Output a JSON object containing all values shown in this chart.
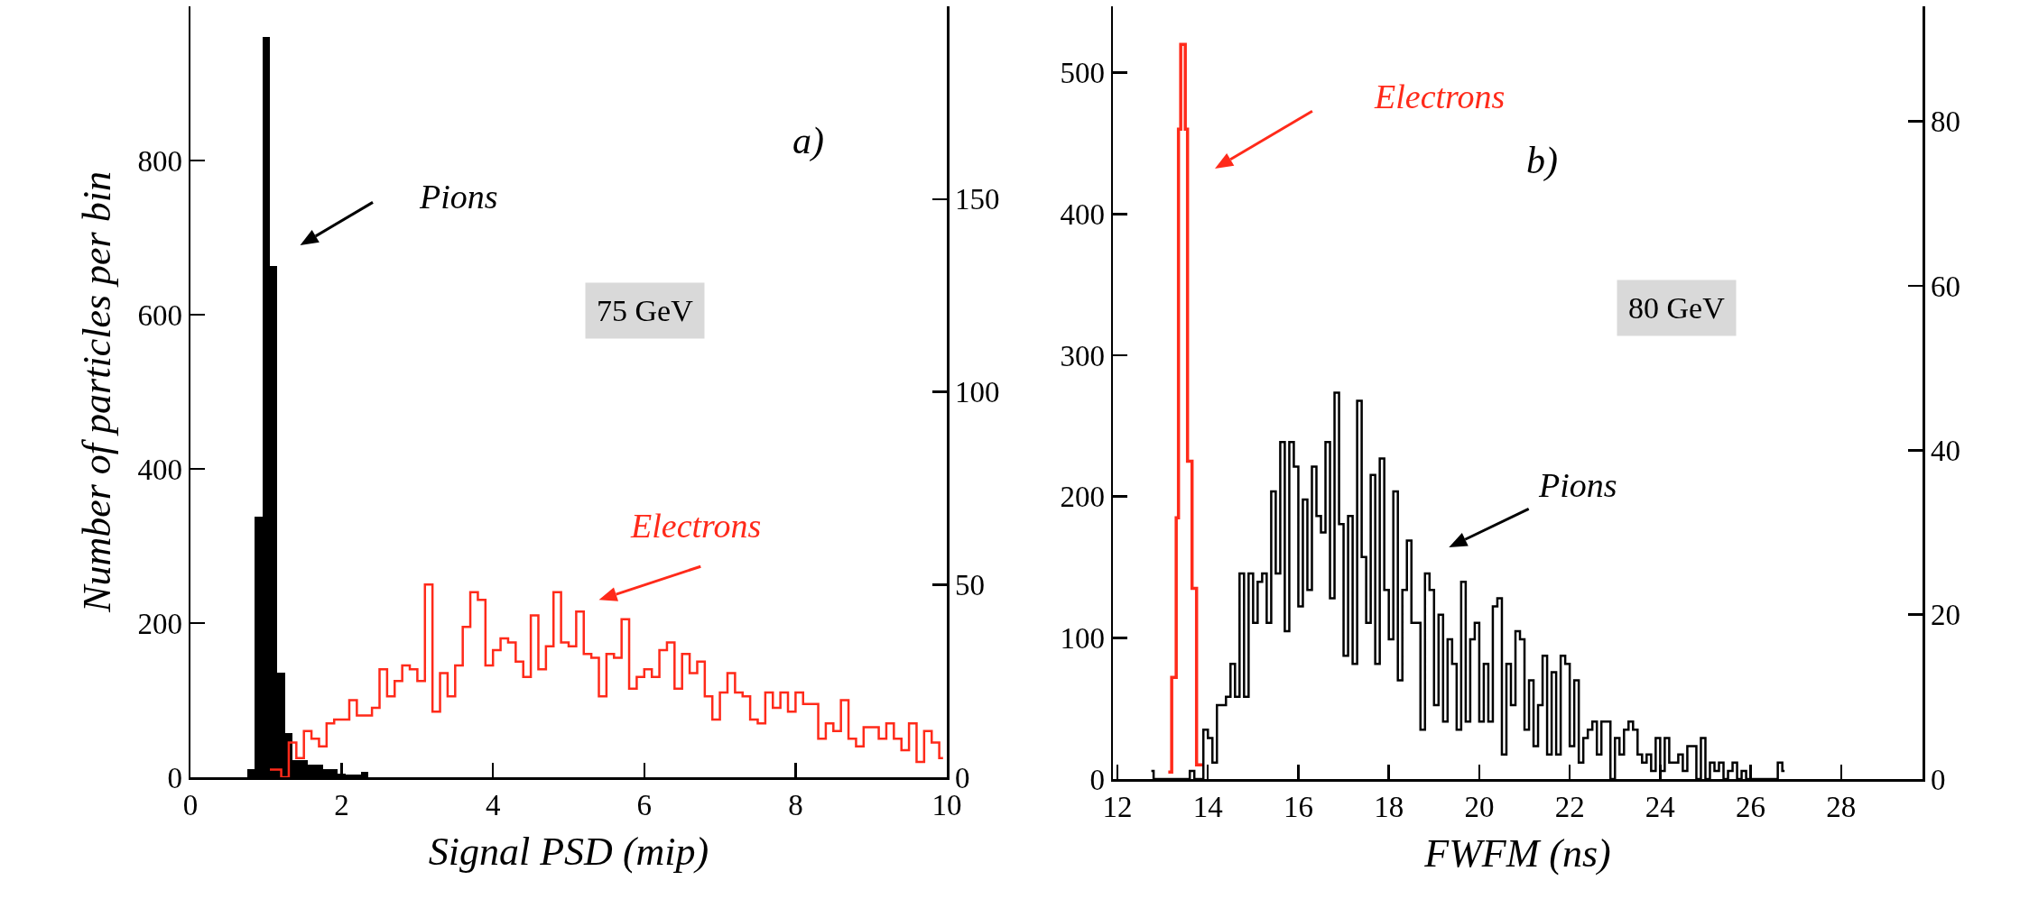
{
  "chart_data": [
    {
      "type": "bar",
      "xlabel": "Signal PSD (mip)",
      "ylabel": "Number of particles per bin",
      "annotations": [
        "a)",
        "75 GeV"
      ],
      "xlim": [
        0,
        10
      ],
      "xticks": [
        0,
        2,
        4,
        6,
        8,
        10
      ],
      "ylim": [
        0,
        1000
      ],
      "yticks": [
        0,
        200,
        400,
        600,
        800
      ],
      "y2lim": [
        0,
        200
      ],
      "y2ticks": [
        0,
        50,
        100,
        150
      ],
      "series": [
        {
          "name": "Pions",
          "color": "#000000",
          "x": [
            0.8,
            0.9,
            1.0,
            1.1,
            1.2,
            1.3,
            1.4,
            1.5,
            1.6,
            1.7,
            1.8,
            1.9,
            2.0,
            2.1,
            2.2,
            2.3
          ],
          "values": [
            10,
            338,
            960,
            663,
            136,
            57,
            22,
            22,
            16,
            16,
            10,
            10,
            5,
            3,
            3,
            7
          ]
        },
        {
          "name": "Electrons",
          "type": "step",
          "color": "#ff2a1a",
          "axis": "y2",
          "x": [
            1.05,
            1.15,
            1.25,
            1.35,
            1.45,
            1.55,
            1.65,
            1.75,
            1.85,
            1.95,
            2.05,
            2.15,
            2.25,
            2.35,
            2.45,
            2.55,
            2.65,
            2.75,
            2.85,
            2.95,
            3.05,
            3.15,
            3.25,
            3.35,
            3.45,
            3.55,
            3.65,
            3.75,
            3.85,
            3.95,
            4.05,
            4.15,
            4.25,
            4.35,
            4.45,
            4.55,
            4.65,
            4.75,
            4.85,
            4.95,
            5.05,
            5.15,
            5.25,
            5.35,
            5.45,
            5.55,
            5.65,
            5.75,
            5.85,
            5.95,
            6.05,
            6.15,
            6.25,
            6.35,
            6.45,
            6.55,
            6.65,
            6.75,
            6.85,
            6.95,
            7.05,
            7.15,
            7.25,
            7.35,
            7.45,
            7.55,
            7.65,
            7.75,
            7.85,
            7.95,
            8.05,
            8.15,
            8.25,
            8.35,
            8.45,
            8.55,
            8.65,
            8.75,
            8.85,
            8.95,
            9.05,
            9.15,
            9.25,
            9.35,
            9.45,
            9.55,
            9.65,
            9.75,
            9.85,
            9.95
          ],
          "values": [
            2,
            2,
            0,
            9,
            5,
            12,
            10,
            8,
            14,
            15,
            15,
            20,
            16,
            16,
            18,
            28,
            21,
            25,
            29,
            28,
            25,
            50,
            17,
            27,
            21,
            29,
            39,
            48,
            46,
            29,
            33,
            36,
            35,
            30,
            26,
            42,
            28,
            34,
            48,
            35,
            34,
            43,
            32,
            31,
            21,
            32,
            31,
            41,
            23,
            26,
            28,
            26,
            33,
            35,
            23,
            32,
            27,
            30,
            21,
            15,
            22,
            27,
            22,
            21,
            15,
            14,
            22,
            18,
            22,
            17,
            22,
            19,
            19,
            10,
            14,
            12,
            20,
            10,
            8,
            13,
            13,
            10,
            14,
            10,
            7,
            14,
            4,
            12,
            9,
            5
          ]
        }
      ]
    },
    {
      "type": "step",
      "xlabel": "FWFM (ns)",
      "annotations": [
        "b)",
        "80 GeV"
      ],
      "xlim": [
        11.9,
        29.8
      ],
      "xticks": [
        12,
        14,
        16,
        18,
        20,
        22,
        24,
        26,
        28
      ],
      "ylim": [
        0,
        547
      ],
      "yticks": [
        0,
        100,
        200,
        300,
        400,
        500
      ],
      "y2lim": [
        0,
        94
      ],
      "y2ticks": [
        0,
        20,
        40,
        60,
        80
      ],
      "series": [
        {
          "name": "Electrons",
          "color": "#ff2a1a",
          "x": [
            13.125,
            13.175,
            13.225,
            13.275,
            13.325,
            13.375,
            13.425,
            13.475,
            13.525,
            13.575,
            13.625,
            13.675,
            13.725,
            13.775,
            13.825,
            13.875
          ],
          "values": [
            5,
            5,
            72,
            72,
            185,
            460,
            520,
            520,
            460,
            225,
            225,
            135,
            135,
            10,
            10,
            10
          ]
        },
        {
          "name": "Pions",
          "color": "#000000",
          "axis": "y2",
          "x": [
            12.75,
            12.85,
            12.95,
            13.05,
            13.15,
            13.25,
            13.35,
            13.45,
            13.55,
            13.65,
            13.75,
            13.85,
            13.95,
            14.05,
            14.15,
            14.25,
            14.35,
            14.45,
            14.55,
            14.65,
            14.75,
            14.85,
            14.95,
            15.05,
            15.15,
            15.25,
            15.35,
            15.45,
            15.55,
            15.65,
            15.75,
            15.85,
            15.95,
            16.05,
            16.15,
            16.25,
            16.35,
            16.45,
            16.55,
            16.65,
            16.75,
            16.85,
            16.95,
            17.05,
            17.15,
            17.25,
            17.35,
            17.45,
            17.55,
            17.65,
            17.75,
            17.85,
            17.95,
            18.05,
            18.15,
            18.25,
            18.35,
            18.45,
            18.55,
            18.65,
            18.75,
            18.85,
            18.95,
            19.05,
            19.15,
            19.25,
            19.35,
            19.45,
            19.55,
            19.65,
            19.75,
            19.85,
            19.95,
            20.05,
            20.15,
            20.25,
            20.35,
            20.45,
            20.55,
            20.65,
            20.75,
            20.85,
            20.95,
            21.05,
            21.15,
            21.25,
            21.35,
            21.45,
            21.55,
            21.65,
            21.75,
            21.85,
            21.95,
            22.05,
            22.15,
            22.25,
            22.35,
            22.45,
            22.55,
            22.65,
            22.75,
            22.85,
            22.95,
            23.05,
            23.15,
            23.25,
            23.35,
            23.45,
            23.55,
            23.65,
            23.75,
            23.85,
            23.95,
            24.05,
            24.15,
            24.25,
            24.35,
            24.45,
            24.55,
            24.65,
            24.75,
            24.85,
            24.95,
            25.05,
            25.15,
            25.25,
            25.35,
            25.45,
            25.55,
            25.65,
            25.75,
            25.85,
            25.95,
            26.05,
            26.15,
            26.25,
            26.35,
            26.45,
            26.55,
            26.65,
            26.75
          ],
          "values": [
            1,
            0,
            0,
            0,
            0,
            0,
            0,
            0,
            0,
            1,
            0,
            0,
            6,
            5,
            2,
            9,
            9,
            10,
            14,
            10,
            25,
            10,
            25,
            19,
            24,
            25,
            19,
            35,
            25,
            41,
            18,
            41,
            38,
            21,
            34,
            23,
            38,
            32,
            30,
            41,
            22,
            47,
            31,
            15,
            32,
            14,
            46,
            27,
            19,
            37,
            14,
            39,
            23,
            17,
            35,
            12,
            23,
            29,
            19,
            19,
            6,
            25,
            23,
            9,
            20,
            7,
            17,
            14,
            6,
            24,
            7,
            17,
            19,
            7,
            14,
            7,
            21,
            22,
            3,
            14,
            9,
            18,
            17,
            6,
            12,
            4,
            9,
            15,
            3,
            13,
            3,
            15,
            14,
            4,
            12,
            2,
            5,
            6,
            7,
            3,
            7,
            7,
            0,
            5,
            3,
            6,
            7,
            6,
            3,
            2,
            3,
            1,
            5,
            1,
            5,
            2,
            2,
            3,
            1,
            4,
            4,
            0,
            5,
            0,
            2,
            1,
            2,
            0,
            1,
            2,
            0,
            1,
            0,
            0,
            0,
            0,
            0,
            0,
            0,
            2,
            1
          ]
        }
      ]
    }
  ]
}
